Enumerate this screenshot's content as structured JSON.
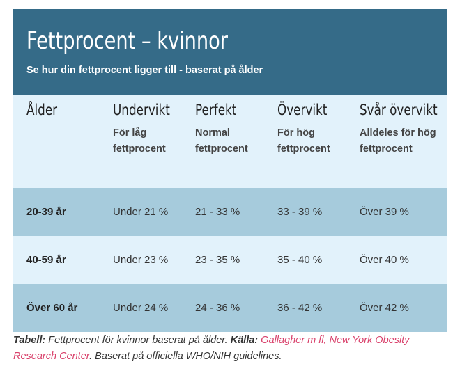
{
  "banner": {
    "title": "Fettprocent – kvinnor",
    "subtitle": "Se hur din fettprocent ligger till - baserat på ålder"
  },
  "columns": [
    {
      "name": "Ålder",
      "desc": ""
    },
    {
      "name": "Undervikt",
      "desc": "För låg fettprocent"
    },
    {
      "name": "Perfekt",
      "desc": "Normal fettprocent"
    },
    {
      "name": "Övervikt",
      "desc": "För hög fettprocent"
    },
    {
      "name": "Svår övervikt",
      "desc": "Alldeles för hög fettprocent"
    }
  ],
  "rows": [
    [
      "20-39 år",
      "Under 21 %",
      "21 - 33 %",
      "33 - 39 %",
      "Över 39 %"
    ],
    [
      "40-59 år",
      "Under 23 %",
      "23 - 35 %",
      "35 - 40 %",
      "Över 40 %"
    ],
    [
      "Över 60 år",
      "Under 24 %",
      "24 - 36 %",
      "36 - 42 %",
      "Över 42 %"
    ]
  ],
  "caption": {
    "label1": "Tabell:",
    "text1": " Fettprocent för kvinnor baserat på ålder. ",
    "label2": "Källa:",
    "link": "Gallagher m fl, New York Obesity Research Center",
    "text2": ". Baserat på officiella WHO/NIH guidelines."
  },
  "colors": {
    "banner": "#356b88",
    "light_row": "#e2f2fb",
    "dark_row": "#a6cbdc",
    "link": "#d9416b"
  }
}
